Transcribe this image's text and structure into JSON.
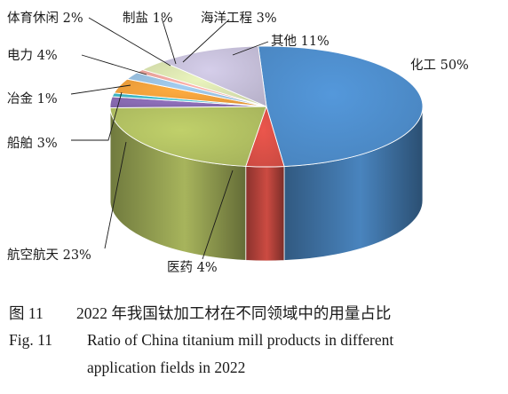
{
  "chart_data": {
    "type": "pie",
    "style": "3d",
    "slices": [
      {
        "label": "化工 50%",
        "name": "化工",
        "value": 50,
        "color": "#4f8fcf"
      },
      {
        "label": "医药 4%",
        "name": "医药",
        "value": 4,
        "color": "#de5148"
      },
      {
        "label": "航空航天 23%",
        "name": "航空航天",
        "value": 23,
        "color": "#b5c464"
      },
      {
        "label": "船舶 3%",
        "name": "船舶",
        "value": 3,
        "color": "#8a6cb4"
      },
      {
        "label": "冶金 1%",
        "name": "冶金",
        "value": 1,
        "color": "#3fb8c7"
      },
      {
        "label": "电力 4%",
        "name": "电力",
        "value": 4,
        "color": "#f4a23c"
      },
      {
        "label": "体育休闲 2%",
        "name": "体育休闲",
        "value": 2,
        "color": "#9bc3e4"
      },
      {
        "label": "制盐 1%",
        "name": "制盐",
        "value": 1,
        "color": "#f0a8a0"
      },
      {
        "label": "海洋工程 3%",
        "name": "海洋工程",
        "value": 3,
        "color": "#dde6b2"
      },
      {
        "label": "其他 11%",
        "name": "其他",
        "value": 11,
        "color": "#c9c2dd"
      }
    ]
  },
  "caption": {
    "cn_number": "图 11",
    "cn_text": "2022 年我国钛加工材在不同领域中的用量占比",
    "en_number": "Fig. 11",
    "en_text_line1": "Ratio of China titanium mill products in different",
    "en_text_line2": "application fields in 2022"
  }
}
